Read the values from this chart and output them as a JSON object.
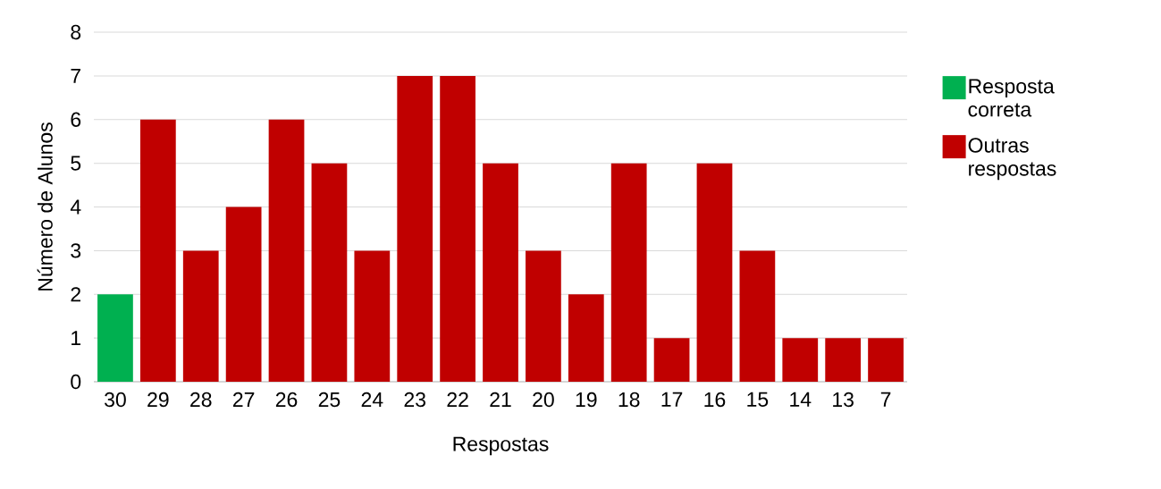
{
  "chart_data": {
    "type": "bar",
    "xlabel": "Respostas",
    "ylabel": "Número de Alunos",
    "categories": [
      "30",
      "29",
      "28",
      "27",
      "26",
      "25",
      "24",
      "23",
      "22",
      "21",
      "20",
      "19",
      "18",
      "17",
      "16",
      "15",
      "14",
      "13",
      "7"
    ],
    "series": [
      {
        "name": "Resposta correta",
        "color": "#00b050",
        "values": [
          2,
          null,
          null,
          null,
          null,
          null,
          null,
          null,
          null,
          null,
          null,
          null,
          null,
          null,
          null,
          null,
          null,
          null,
          null
        ]
      },
      {
        "name": "Outras respostas",
        "color": "#c00000",
        "values": [
          null,
          6,
          3,
          4,
          6,
          5,
          3,
          7,
          7,
          5,
          3,
          2,
          5,
          1,
          5,
          3,
          1,
          1,
          1
        ]
      }
    ],
    "ylim": [
      0,
      8
    ],
    "yticks": [
      0,
      1,
      2,
      3,
      4,
      5,
      6,
      7,
      8
    ],
    "grid": "y",
    "legend": "right"
  }
}
